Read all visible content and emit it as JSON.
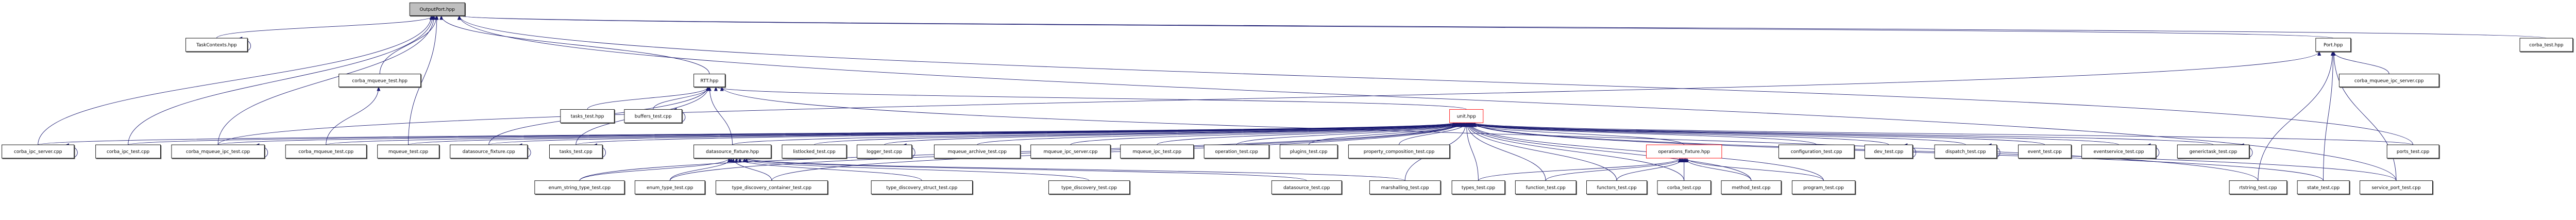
{
  "graph": {
    "root": "OutputPort.hpp",
    "colors": {
      "edge": "#191970",
      "root_fill": "#bfbfbf",
      "highlight_border": "#ff0000",
      "border": "#000000"
    },
    "nodes": [
      {
        "label": "OutputPort.hpp"
      },
      {
        "label": "TaskContexts.hpp"
      },
      {
        "label": "Port.hpp"
      },
      {
        "label": "corba_test.hpp"
      },
      {
        "label": "RTT.hpp"
      },
      {
        "label": "corba_mqueue_test.hpp"
      },
      {
        "label": "corba_mqueue_ipc_server.cpp"
      },
      {
        "label": "tasks_test.hpp"
      },
      {
        "label": "buffers_test.cpp"
      },
      {
        "label": "unit.hpp"
      },
      {
        "label": "corba_ipc_server.cpp"
      },
      {
        "label": "corba_ipc_test.cpp"
      },
      {
        "label": "corba_mqueue_ipc_test.cpp"
      },
      {
        "label": "corba_mqueue_test.cpp"
      },
      {
        "label": "mqueue_test.cpp"
      },
      {
        "label": "datasource_fixture.cpp"
      },
      {
        "label": "tasks_test.cpp"
      },
      {
        "label": "datasource_fixture.hpp"
      },
      {
        "label": "listlocked_test.cpp"
      },
      {
        "label": "logger_test.cpp"
      },
      {
        "label": "mqueue_archive_test.cpp"
      },
      {
        "label": "mqueue_ipc_server.cpp"
      },
      {
        "label": "mqueue_ipc_test.cpp"
      },
      {
        "label": "operation_test.cpp"
      },
      {
        "label": "plugins_test.cpp"
      },
      {
        "label": "property_composition_test.cpp"
      },
      {
        "label": "operations_fixture.hpp"
      },
      {
        "label": "configuration_test.cpp"
      },
      {
        "label": "dev_test.cpp"
      },
      {
        "label": "dispatch_test.cpp"
      },
      {
        "label": "event_test.cpp"
      },
      {
        "label": "eventservice_test.cpp"
      },
      {
        "label": "generictask_test.cpp"
      },
      {
        "label": "ports_test.cpp"
      },
      {
        "label": "enum_string_type_test.cpp"
      },
      {
        "label": "enum_type_test.cpp"
      },
      {
        "label": "type_discovery_container_test.cpp"
      },
      {
        "label": "type_discovery_struct_test.cpp"
      },
      {
        "label": "type_discovery_test.cpp"
      },
      {
        "label": "datasource_test.cpp"
      },
      {
        "label": "marshalling_test.cpp"
      },
      {
        "label": "types_test.cpp"
      },
      {
        "label": "function_test.cpp"
      },
      {
        "label": "functors_test.cpp"
      },
      {
        "label": "corba_test.cpp"
      },
      {
        "label": "method_test.cpp"
      },
      {
        "label": "program_test.cpp"
      },
      {
        "label": "rtstring_test.cpp"
      },
      {
        "label": "state_test.cpp"
      },
      {
        "label": "service_port_test.cpp"
      }
    ],
    "edges": [
      [
        "TaskContexts.hpp",
        "OutputPort.hpp"
      ],
      [
        "corba_ipc_server.cpp",
        "OutputPort.hpp"
      ],
      [
        "corba_ipc_test.cpp",
        "OutputPort.hpp"
      ],
      [
        "corba_mqueue_ipc_test.cpp",
        "OutputPort.hpp"
      ],
      [
        "corba_mqueue_test.hpp",
        "OutputPort.hpp"
      ],
      [
        "mqueue_test.cpp",
        "OutputPort.hpp"
      ],
      [
        "RTT.hpp",
        "OutputPort.hpp"
      ],
      [
        "Port.hpp",
        "OutputPort.hpp"
      ],
      [
        "corba_test.hpp",
        "OutputPort.hpp"
      ],
      [
        "ports_test.cpp",
        "OutputPort.hpp"
      ],
      [
        "service_port_test.cpp",
        "OutputPort.hpp"
      ],
      [
        "corba_mqueue_test.cpp",
        "corba_mqueue_test.hpp"
      ],
      [
        "datasource_fixture.cpp",
        "RTT.hpp"
      ],
      [
        "tasks_test.hpp",
        "RTT.hpp"
      ],
      [
        "buffers_test.cpp",
        "RTT.hpp"
      ],
      [
        "tasks_test.cpp",
        "RTT.hpp"
      ],
      [
        "datasource_fixture.hpp",
        "RTT.hpp"
      ],
      [
        "unit.hpp",
        "RTT.hpp"
      ],
      [
        "rtstring_test.cpp",
        "RTT.hpp"
      ],
      [
        "corba_mqueue_ipc_server.cpp",
        "Port.hpp"
      ],
      [
        "rtstring_test.cpp",
        "Port.hpp"
      ],
      [
        "state_test.cpp",
        "Port.hpp"
      ],
      [
        "service_port_test.cpp",
        "Port.hpp"
      ],
      [
        "corba_mqueue_ipc_test.cpp",
        "Port.hpp"
      ],
      [
        "corba_ipc_server.cpp",
        "unit.hpp"
      ],
      [
        "corba_ipc_test.cpp",
        "unit.hpp"
      ],
      [
        "corba_mqueue_ipc_test.cpp",
        "unit.hpp"
      ],
      [
        "corba_mqueue_test.cpp",
        "unit.hpp"
      ],
      [
        "mqueue_test.cpp",
        "unit.hpp"
      ],
      [
        "datasource_fixture.cpp",
        "unit.hpp"
      ],
      [
        "tasks_test.cpp",
        "unit.hpp"
      ],
      [
        "datasource_fixture.hpp",
        "unit.hpp"
      ],
      [
        "listlocked_test.cpp",
        "unit.hpp"
      ],
      [
        "logger_test.cpp",
        "unit.hpp"
      ],
      [
        "mqueue_archive_test.cpp",
        "unit.hpp"
      ],
      [
        "mqueue_ipc_server.cpp",
        "unit.hpp"
      ],
      [
        "mqueue_ipc_test.cpp",
        "unit.hpp"
      ],
      [
        "operation_test.cpp",
        "unit.hpp"
      ],
      [
        "plugins_test.cpp",
        "unit.hpp"
      ],
      [
        "property_composition_test.cpp",
        "unit.hpp"
      ],
      [
        "operations_fixture.hpp",
        "unit.hpp"
      ],
      [
        "configuration_test.cpp",
        "unit.hpp"
      ],
      [
        "dev_test.cpp",
        "unit.hpp"
      ],
      [
        "dispatch_test.cpp",
        "unit.hpp"
      ],
      [
        "event_test.cpp",
        "unit.hpp"
      ],
      [
        "eventservice_test.cpp",
        "unit.hpp"
      ],
      [
        "generictask_test.cpp",
        "unit.hpp"
      ],
      [
        "ports_test.cpp",
        "unit.hpp"
      ],
      [
        "enum_string_type_test.cpp",
        "unit.hpp"
      ],
      [
        "enum_type_test.cpp",
        "unit.hpp"
      ],
      [
        "type_discovery_container_test.cpp",
        "unit.hpp"
      ],
      [
        "marshalling_test.cpp",
        "unit.hpp"
      ],
      [
        "types_test.cpp",
        "unit.hpp"
      ],
      [
        "function_test.cpp",
        "unit.hpp"
      ],
      [
        "functors_test.cpp",
        "unit.hpp"
      ],
      [
        "corba_test.cpp",
        "unit.hpp"
      ],
      [
        "method_test.cpp",
        "unit.hpp"
      ],
      [
        "program_test.cpp",
        "unit.hpp"
      ],
      [
        "state_test.cpp",
        "unit.hpp"
      ],
      [
        "service_port_test.cpp",
        "unit.hpp"
      ],
      [
        "enum_string_type_test.cpp",
        "datasource_fixture.hpp"
      ],
      [
        "enum_type_test.cpp",
        "datasource_fixture.hpp"
      ],
      [
        "type_discovery_container_test.cpp",
        "datasource_fixture.hpp"
      ],
      [
        "type_discovery_struct_test.cpp",
        "datasource_fixture.hpp"
      ],
      [
        "type_discovery_test.cpp",
        "datasource_fixture.hpp"
      ],
      [
        "datasource_test.cpp",
        "datasource_fixture.hpp"
      ],
      [
        "marshalling_test.cpp",
        "datasource_fixture.hpp"
      ],
      [
        "types_test.cpp",
        "operations_fixture.hpp"
      ],
      [
        "function_test.cpp",
        "operations_fixture.hpp"
      ],
      [
        "functors_test.cpp",
        "operations_fixture.hpp"
      ],
      [
        "corba_test.cpp",
        "operations_fixture.hpp"
      ],
      [
        "method_test.cpp",
        "operations_fixture.hpp"
      ],
      [
        "program_test.cpp",
        "operations_fixture.hpp"
      ],
      [
        "TaskContexts.hpp",
        "TaskContexts.hpp"
      ],
      [
        "corba_ipc_server.cpp",
        "corba_ipc_server.cpp"
      ],
      [
        "corba_mqueue_ipc_test.cpp",
        "corba_mqueue_ipc_test.cpp"
      ],
      [
        "buffers_test.cpp",
        "buffers_test.cpp"
      ],
      [
        "datasource_fixture.cpp",
        "datasource_fixture.cpp"
      ],
      [
        "tasks_test.cpp",
        "tasks_test.cpp"
      ],
      [
        "logger_test.cpp",
        "logger_test.cpp"
      ],
      [
        "dev_test.cpp",
        "dev_test.cpp"
      ],
      [
        "dispatch_test.cpp",
        "dispatch_test.cpp"
      ],
      [
        "eventservice_test.cpp",
        "eventservice_test.cpp"
      ],
      [
        "generictask_test.cpp",
        "generictask_test.cpp"
      ]
    ]
  }
}
